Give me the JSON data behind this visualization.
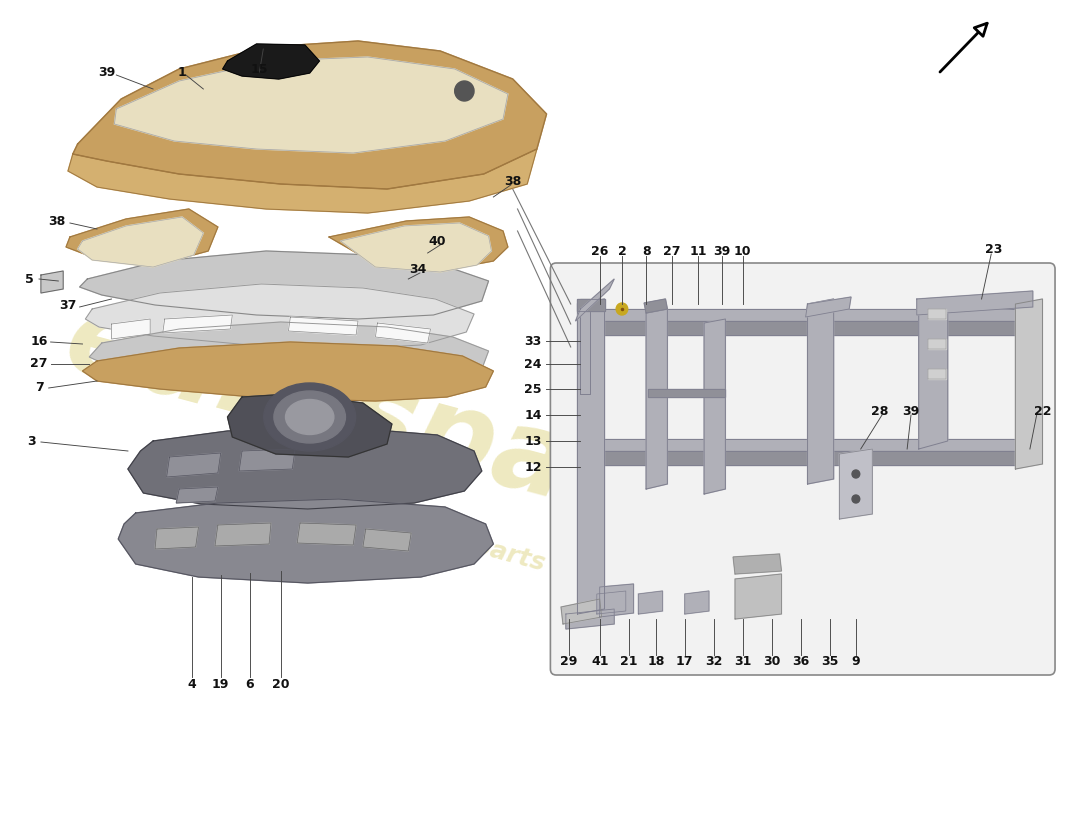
{
  "background_color": "#ffffff",
  "watermark_text1": "eurospares",
  "watermark_text2": "a passion for parts since 1985",
  "watermark_color": "#c8b830",
  "watermark_alpha": 0.3,
  "tan": "#c8a060",
  "tan_dark": "#a07840",
  "tan_light": "#d4b070",
  "cream": "#e8dfc0",
  "lgray": "#c8c8c8",
  "mgray": "#a8a8b0",
  "dgray": "#686870",
  "vdgray": "#505058",
  "black": "#222222",
  "frame_fill": "#b0b0b8",
  "frame_edge": "#808090",
  "box_bg": "#f0f0f0",
  "box_edge": "#909090",
  "label_color": "#111111",
  "leader_color": "#444444",
  "label_fs": 9
}
